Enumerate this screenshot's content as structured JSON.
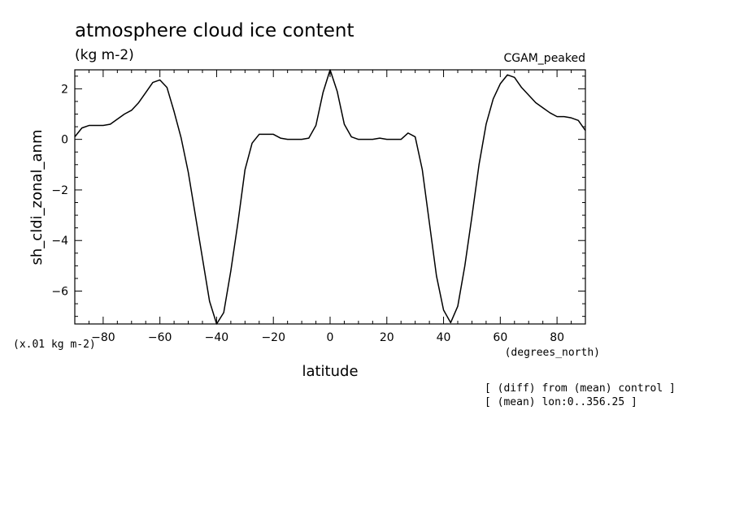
{
  "chart_data": {
    "type": "line",
    "title": "atmosphere cloud ice content",
    "subtitle": "(kg m-2)",
    "run_label": "CGAM_peaked",
    "xlabel": "latitude",
    "x_unit_label": "(degrees_north)",
    "ylabel": "sh_cldi_zonal_anm",
    "y_scale_label": "(x.01 kg m-2)",
    "xlim": [
      -90,
      90
    ],
    "ylim": [
      -7.3,
      2.75
    ],
    "x_ticks": [
      -80,
      -60,
      -40,
      -20,
      0,
      20,
      40,
      60,
      80
    ],
    "y_ticks": [
      2,
      0,
      -2,
      -4,
      -6
    ],
    "x_tick_labels": [
      "−80",
      "−60",
      "−40",
      "−20",
      "0",
      "20",
      "40",
      "60",
      "80"
    ],
    "y_tick_labels": [
      "2",
      "0",
      "−2",
      "−4",
      "−6"
    ],
    "grid": false,
    "series": [
      {
        "x": [
          -90,
          -87.5,
          -85,
          -82.5,
          -80,
          -77.5,
          -75,
          -72.5,
          -70,
          -67.5,
          -65,
          -62.5,
          -60,
          -57.5,
          -55,
          -52.5,
          -50,
          -47.5,
          -45,
          -42.5,
          -40,
          -37.5,
          -35,
          -32.5,
          -30,
          -27.5,
          -25,
          -22.5,
          -20,
          -17.5,
          -15,
          -12.5,
          -10,
          -7.5,
          -5,
          -2.5,
          0,
          2.5,
          5,
          7.5,
          10,
          12.5,
          15,
          17.5,
          20,
          22.5,
          25,
          27.5,
          30,
          32.5,
          35,
          37.5,
          40,
          42.5,
          45,
          47.5,
          50,
          52.5,
          55,
          57.5,
          60,
          62.5,
          65,
          67.5,
          70,
          72.5,
          75,
          77.5,
          80,
          82.5,
          85,
          87.5,
          90
        ],
        "y": [
          0.1,
          0.45,
          0.55,
          0.55,
          0.55,
          0.6,
          0.8,
          1.0,
          1.15,
          1.45,
          1.85,
          2.25,
          2.35,
          2.05,
          1.1,
          0.05,
          -1.3,
          -3.0,
          -4.7,
          -6.4,
          -7.3,
          -6.85,
          -5.2,
          -3.3,
          -1.2,
          -0.15,
          0.2,
          0.2,
          0.2,
          0.05,
          0.0,
          0.0,
          0.0,
          0.05,
          0.55,
          1.85,
          2.75,
          1.9,
          0.6,
          0.1,
          0.0,
          0.0,
          0.0,
          0.05,
          0.0,
          0.0,
          0.0,
          0.25,
          0.1,
          -1.2,
          -3.3,
          -5.4,
          -6.75,
          -7.25,
          -6.6,
          -5.0,
          -3.05,
          -1.0,
          0.6,
          1.6,
          2.2,
          2.55,
          2.45,
          2.05,
          1.75,
          1.45,
          1.25,
          1.05,
          0.9,
          0.9,
          0.85,
          0.75,
          0.35
        ]
      }
    ]
  },
  "notes": {
    "line1": "[ (diff) from (mean) control ]",
    "line2": "[ (mean) lon:0..356.25 ]"
  }
}
